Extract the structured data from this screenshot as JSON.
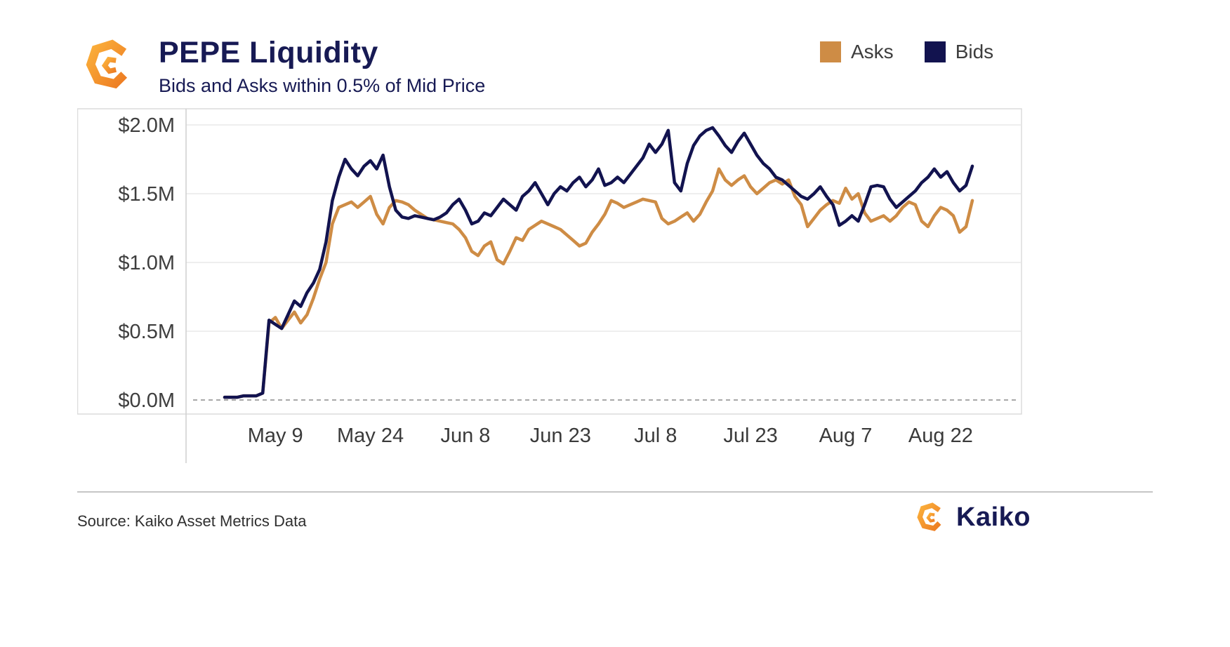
{
  "header": {
    "title": "PEPE Liquidity",
    "subtitle": "Bids and Asks within 0.5% of Mid Price"
  },
  "legend": [
    {
      "label": "Asks",
      "color": "#CE8C45"
    },
    {
      "label": "Bids",
      "color": "#12134F"
    }
  ],
  "footer": {
    "source": "Source: Kaiko Asset Metrics Data",
    "brand": "Kaiko"
  },
  "colors": {
    "asks": "#CE8C45",
    "bids": "#12134F",
    "title_navy": "#171A54",
    "gridline": "#e8e8e8",
    "zero_line": "#a8a8a8",
    "logo_orange_light": "#FBB03B",
    "logo_orange_dark": "#ED7C23"
  },
  "chart_data": {
    "type": "line",
    "title": "PEPE Liquidity",
    "subtitle": "Bids and Asks within 0.5% of Mid Price",
    "unit": "USD millions",
    "ylim": [
      0,
      2.05
    ],
    "grid": "horizontal",
    "legend_position": "top-right",
    "x_range_days": 118,
    "y_ticks": [
      {
        "label": "$2.0M",
        "value": 2.0
      },
      {
        "label": "$1.5M",
        "value": 1.5
      },
      {
        "label": "$1.0M",
        "value": 1.0
      },
      {
        "label": "$0.5M",
        "value": 0.5
      },
      {
        "label": "$0.0M",
        "value": 0.0
      }
    ],
    "x_ticks": [
      {
        "label": "May 9",
        "day": 8
      },
      {
        "label": "May 24",
        "day": 23
      },
      {
        "label": "Jun 8",
        "day": 38
      },
      {
        "label": "Jun 23",
        "day": 53
      },
      {
        "label": "Jul 8",
        "day": 68
      },
      {
        "label": "Jul 23",
        "day": 83
      },
      {
        "label": "Aug 7",
        "day": 98
      },
      {
        "label": "Aug 22",
        "day": 113
      }
    ],
    "series": [
      {
        "name": "Asks",
        "color": "#CE8C45",
        "values": [
          0.02,
          0.02,
          0.02,
          0.03,
          0.03,
          0.03,
          0.05,
          0.56,
          0.6,
          0.52,
          0.58,
          0.64,
          0.56,
          0.62,
          0.74,
          0.88,
          1.0,
          1.28,
          1.4,
          1.42,
          1.44,
          1.4,
          1.44,
          1.48,
          1.35,
          1.28,
          1.4,
          1.45,
          1.44,
          1.42,
          1.38,
          1.35,
          1.32,
          1.31,
          1.3,
          1.29,
          1.28,
          1.24,
          1.18,
          1.08,
          1.05,
          1.12,
          1.15,
          1.02,
          0.99,
          1.08,
          1.18,
          1.16,
          1.24,
          1.27,
          1.3,
          1.28,
          1.26,
          1.24,
          1.2,
          1.16,
          1.12,
          1.14,
          1.22,
          1.28,
          1.35,
          1.45,
          1.43,
          1.4,
          1.42,
          1.44,
          1.46,
          1.45,
          1.44,
          1.32,
          1.28,
          1.3,
          1.33,
          1.36,
          1.3,
          1.35,
          1.44,
          1.52,
          1.68,
          1.6,
          1.56,
          1.6,
          1.63,
          1.55,
          1.5,
          1.54,
          1.58,
          1.6,
          1.57,
          1.6,
          1.48,
          1.42,
          1.26,
          1.32,
          1.38,
          1.42,
          1.45,
          1.43,
          1.54,
          1.46,
          1.5,
          1.36,
          1.3,
          1.32,
          1.34,
          1.3,
          1.34,
          1.4,
          1.44,
          1.42,
          1.3,
          1.26,
          1.34,
          1.4,
          1.38,
          1.34,
          1.22,
          1.26,
          1.45
        ]
      },
      {
        "name": "Bids",
        "color": "#12134F",
        "values": [
          0.02,
          0.02,
          0.02,
          0.03,
          0.03,
          0.03,
          0.05,
          0.58,
          0.55,
          0.52,
          0.62,
          0.72,
          0.68,
          0.78,
          0.85,
          0.95,
          1.15,
          1.45,
          1.62,
          1.75,
          1.68,
          1.63,
          1.7,
          1.74,
          1.68,
          1.78,
          1.55,
          1.38,
          1.33,
          1.32,
          1.34,
          1.33,
          1.32,
          1.31,
          1.33,
          1.36,
          1.42,
          1.46,
          1.38,
          1.28,
          1.3,
          1.36,
          1.34,
          1.4,
          1.46,
          1.42,
          1.38,
          1.48,
          1.52,
          1.58,
          1.5,
          1.42,
          1.5,
          1.55,
          1.52,
          1.58,
          1.62,
          1.55,
          1.6,
          1.68,
          1.56,
          1.58,
          1.62,
          1.58,
          1.64,
          1.7,
          1.76,
          1.86,
          1.8,
          1.86,
          1.96,
          1.58,
          1.52,
          1.72,
          1.85,
          1.92,
          1.96,
          1.98,
          1.92,
          1.85,
          1.8,
          1.88,
          1.94,
          1.86,
          1.78,
          1.72,
          1.68,
          1.62,
          1.6,
          1.56,
          1.52,
          1.48,
          1.46,
          1.5,
          1.55,
          1.48,
          1.42,
          1.27,
          1.3,
          1.34,
          1.3,
          1.42,
          1.55,
          1.56,
          1.55,
          1.46,
          1.4,
          1.44,
          1.48,
          1.52,
          1.58,
          1.62,
          1.68,
          1.62,
          1.66,
          1.58,
          1.52,
          1.56,
          1.7
        ]
      }
    ]
  }
}
